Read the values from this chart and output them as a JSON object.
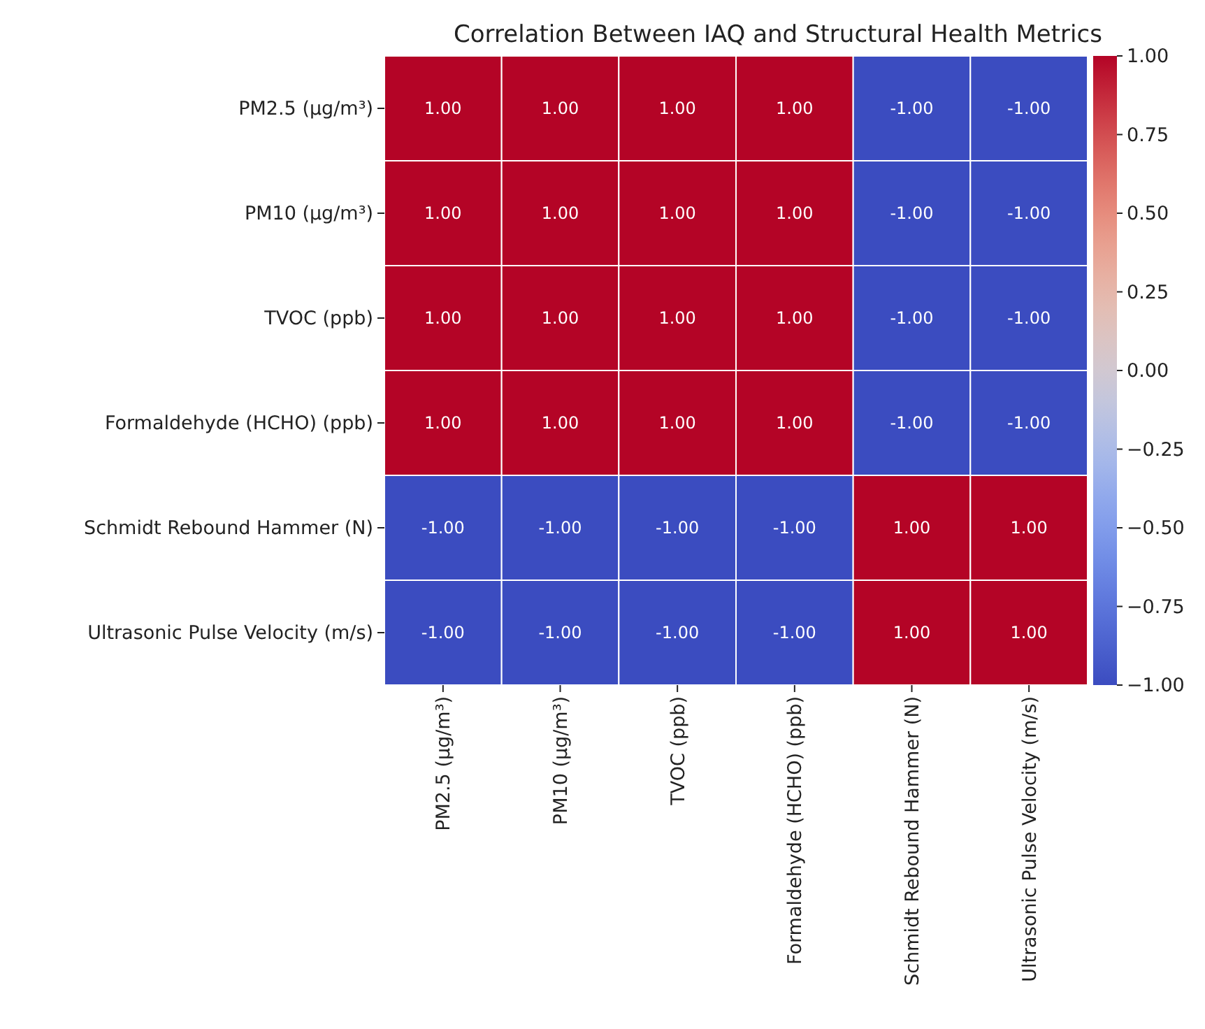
{
  "chart_data": {
    "type": "heatmap",
    "title": "Correlation Between IAQ and Structural Health Metrics",
    "categories": [
      "PM2.5 (µg/m³)",
      "PM10 (µg/m³)",
      "TVOC (ppb)",
      "Formaldehyde (HCHO) (ppb)",
      "Schmidt Rebound Hammer (N)",
      "Ultrasonic Pulse Velocity (m/s)"
    ],
    "y_categories": [
      "PM2.5 (µg/m³)",
      "PM10 (µg/m³)",
      "TVOC (ppb)",
      "Formaldehyde (HCHO) (ppb)",
      "Schmidt Rebound Hammer (N)",
      "Ultrasonic Pulse Velocity (m/s)"
    ],
    "cells": [
      [
        1,
        1,
        1,
        1,
        -1,
        -1
      ],
      [
        1,
        1,
        1,
        1,
        -1,
        -1
      ],
      [
        1,
        1,
        1,
        1,
        -1,
        -1
      ],
      [
        1,
        1,
        1,
        1,
        -1,
        -1
      ],
      [
        -1,
        -1,
        -1,
        -1,
        1,
        1
      ],
      [
        -1,
        -1,
        -1,
        -1,
        1,
        1
      ]
    ],
    "cell_labels": [
      [
        "1.00",
        "1.00",
        "1.00",
        "1.00",
        "-1.00",
        "-1.00"
      ],
      [
        "1.00",
        "1.00",
        "1.00",
        "1.00",
        "-1.00",
        "-1.00"
      ],
      [
        "1.00",
        "1.00",
        "1.00",
        "1.00",
        "-1.00",
        "-1.00"
      ],
      [
        "1.00",
        "1.00",
        "1.00",
        "1.00",
        "-1.00",
        "-1.00"
      ],
      [
        "-1.00",
        "-1.00",
        "-1.00",
        "-1.00",
        "1.00",
        "1.00"
      ],
      [
        "-1.00",
        "-1.00",
        "-1.00",
        "-1.00",
        "1.00",
        "1.00"
      ]
    ],
    "clim": [
      -1,
      1
    ],
    "cticks": [
      {
        "value": 1,
        "label": "1.00"
      },
      {
        "value": 0.75,
        "label": "0.75"
      },
      {
        "value": 0.5,
        "label": "0.50"
      },
      {
        "value": 0.25,
        "label": "0.25"
      },
      {
        "value": 0,
        "label": "0.00"
      },
      {
        "value": -0.25,
        "label": "−0.25"
      },
      {
        "value": -0.5,
        "label": "−0.50"
      },
      {
        "value": -0.75,
        "label": "−0.75"
      },
      {
        "value": -1,
        "label": "−1.00"
      }
    ]
  }
}
